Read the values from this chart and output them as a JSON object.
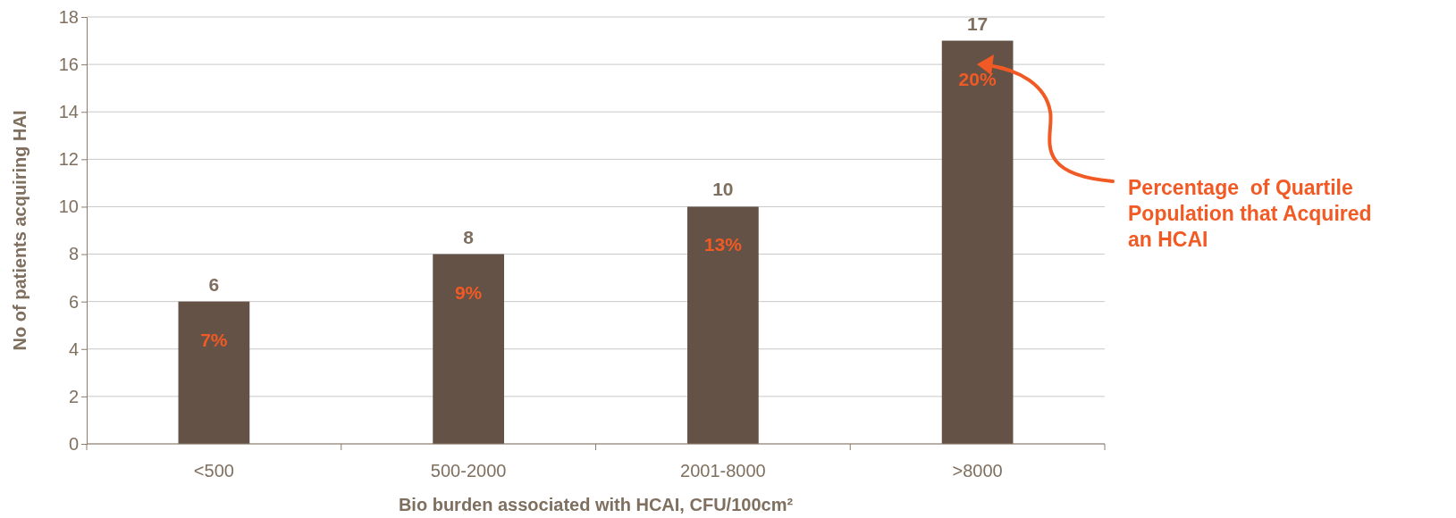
{
  "chart_data": {
    "type": "bar",
    "xlabel": "Bio burden associated with HCAI, CFU/100cm²",
    "ylabel": "No of patients acquiring HAI",
    "categories": [
      "<500",
      "500-2000",
      "2001-8000",
      ">8000"
    ],
    "values": [
      6,
      8,
      10,
      17
    ],
    "color": "#635245",
    "ylim": [
      0,
      18
    ],
    "yticks": [
      0,
      2,
      4,
      6,
      8,
      10,
      12,
      14,
      16,
      18
    ],
    "grid": "y",
    "data_labels": true,
    "annotations": [
      "7%",
      "9%",
      "13%",
      "20%",
      "Percentage  of Quartile Population that Acquired an HCAI"
    ]
  }
}
